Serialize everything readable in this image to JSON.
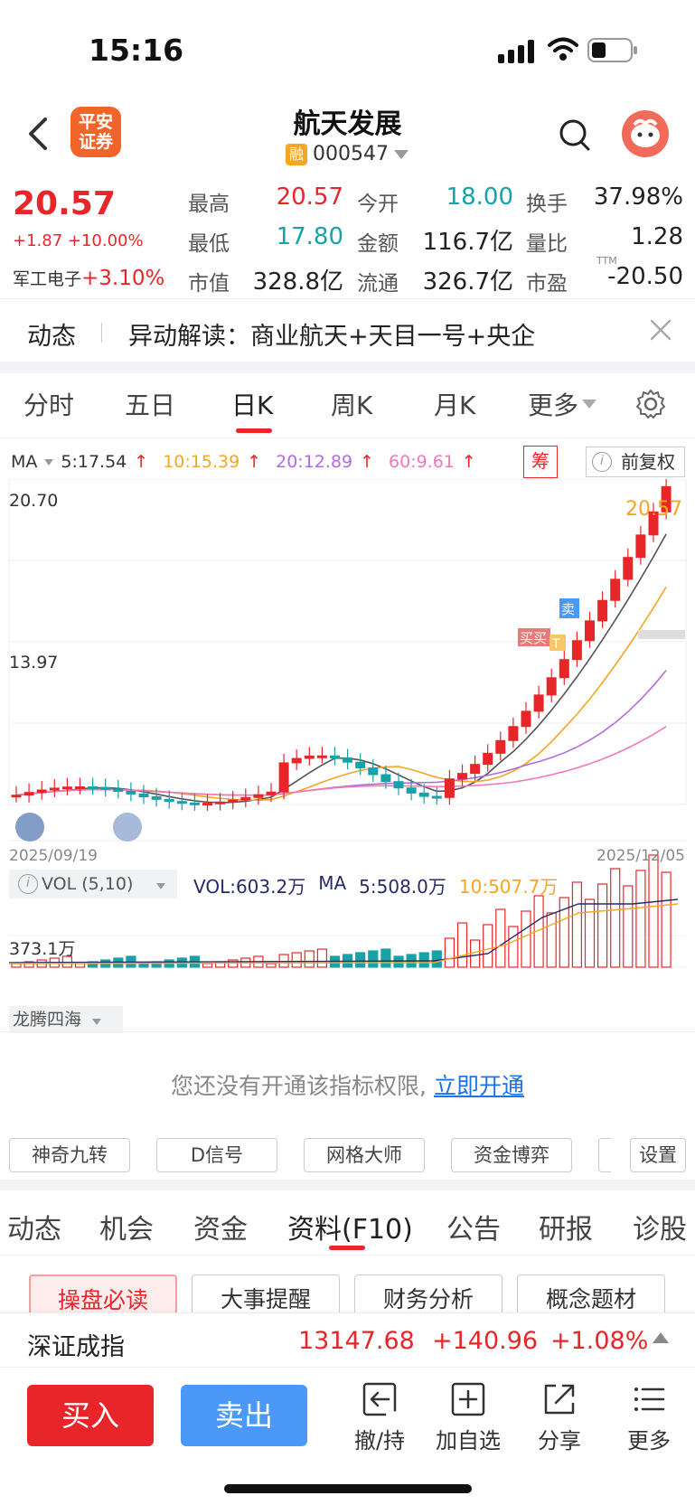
{
  "status": {
    "time": "15:16"
  },
  "header": {
    "broker_logo": "平安\n证券",
    "title": "航天发展",
    "margin_badge": "融",
    "code": "000547"
  },
  "quote": {
    "price": "20.57",
    "change": "+1.87 +10.00%",
    "sector_name": "军工电子",
    "sector_change": "+3.10%",
    "labels": {
      "high": "最高",
      "open": "今开",
      "turnover": "换手",
      "low": "最低",
      "amount": "金额",
      "vol_ratio": "量比",
      "mktcap": "市值",
      "float": "流通",
      "pe": "市盈"
    },
    "values": {
      "high": "20.57",
      "open": "18.00",
      "turnover": "37.98%",
      "low": "17.80",
      "amount": "116.7亿",
      "vol_ratio": "1.28",
      "mktcap": "328.8亿",
      "float": "326.7亿",
      "pe": "-20.50"
    },
    "pe_tag": "TTM"
  },
  "news": {
    "label": "动态",
    "text": "异动解读：商业航天+天目一号+央企"
  },
  "period_tabs": [
    "分时",
    "五日",
    "日K",
    "周K",
    "月K",
    "更多"
  ],
  "ma": {
    "label": "MA",
    "ma5": "5:17.54",
    "ma10": "10:15.39",
    "ma20": "20:12.89",
    "ma60": "60:9.61",
    "arrow": "↑"
  },
  "chip_label": "筹",
  "adjust_label": "前复权",
  "info_glyph": "i",
  "colors": {
    "up": "#e8262a",
    "down": "#17a2a8",
    "ma5": "#555555",
    "ma10": "#f5a623",
    "ma20": "#b36be0",
    "ma60": "#f07ab8",
    "accent_blue": "#4a98f7"
  },
  "kline": {
    "high_label": "20.70",
    "mid_label": "13.97",
    "last_label": "20.57",
    "date_start": "2025/09/19",
    "date_end": "2025/12/05",
    "marker_buy": "买买",
    "marker_t": "T",
    "marker_sell": "卖"
  },
  "vol": {
    "box_label": "VOL (5,10)",
    "vol_text": "VOL:603.2万",
    "ma_label": "MA",
    "ma5_text": "5:508.0万",
    "ma10_text": "10:507.7万",
    "axis_label": "373.1万"
  },
  "indicator": {
    "name": "龙腾四海",
    "no_priv_text": "您还没有开通该指标权限,",
    "open_link": "立即开通"
  },
  "tools": [
    "神奇九转",
    "D信号",
    "网格大师",
    "资金博弈",
    "设置"
  ],
  "bottom_tabs": [
    "动态",
    "机会",
    "资金",
    "资料(F10)",
    "公告",
    "研报",
    "诊股"
  ],
  "content_tabs": [
    "操盘必读",
    "大事提醒",
    "财务分析",
    "概念题材"
  ],
  "index": {
    "name": "深证成指",
    "value": "13147.68",
    "change": "+140.96",
    "pct": "+1.08%"
  },
  "actions": {
    "buy": "买入",
    "sell": "卖出",
    "cancel": "撤/持",
    "add": "加自选",
    "share": "分享",
    "more": "更多"
  }
}
